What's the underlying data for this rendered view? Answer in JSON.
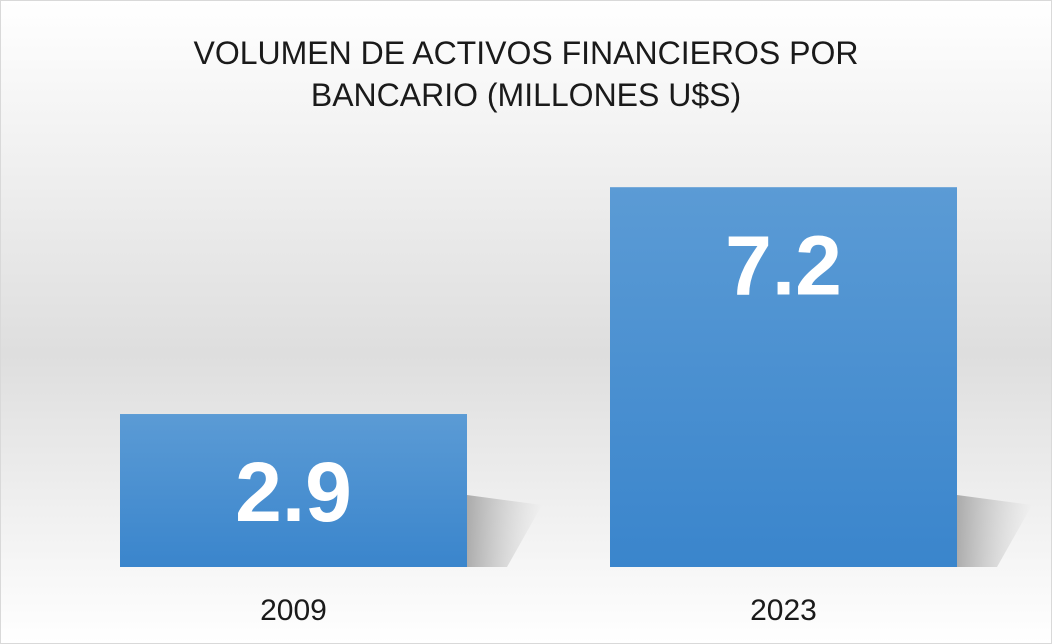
{
  "chart_data": {
    "type": "bar",
    "title": "VOLUMEN DE ACTIVOS FINANCIEROS POR BANCARIO (MILLONES U$S)",
    "categories": [
      "2009",
      "2023"
    ],
    "values": [
      2.9,
      7.2
    ],
    "color": "#4a8fd4",
    "ylim": [
      0,
      8
    ],
    "grid": false
  }
}
